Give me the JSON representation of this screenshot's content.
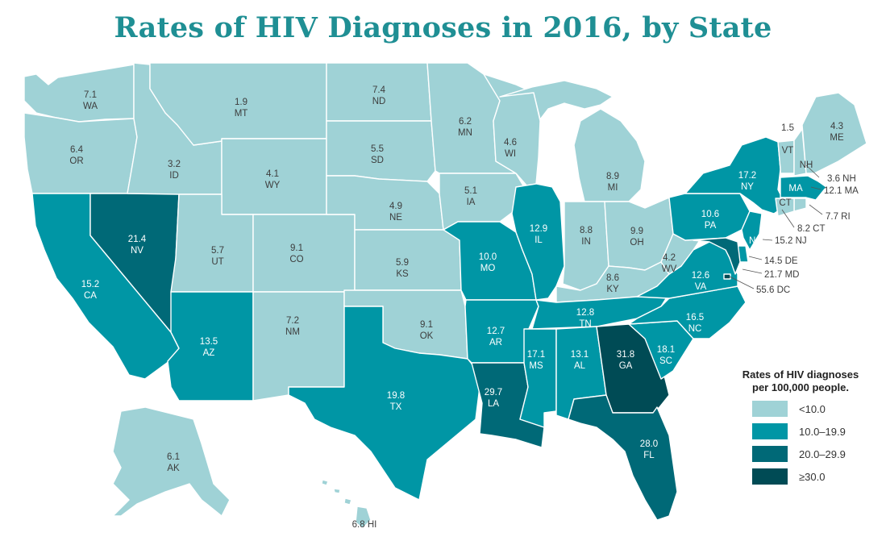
{
  "title": "Rates of HIV Diagnoses in 2016, by State",
  "colors": {
    "c1": "#9fd2d6",
    "c2": "#0096a5",
    "c3": "#006977",
    "c4": "#004b55",
    "title": "#1f8f94"
  },
  "legend": {
    "title_line1": "Rates of HIV diagnoses",
    "title_line2": "per 100,000 people.",
    "items": [
      {
        "label": "<10.0"
      },
      {
        "label": "10.0–19.9"
      },
      {
        "label": "20.0–29.9"
      },
      {
        "label": "≥30.0"
      }
    ]
  },
  "chart_data": {
    "type": "choropleth",
    "title": "Rates of HIV Diagnoses in 2016, by State",
    "unit": "per 100,000 people",
    "bins": [
      "<10.0",
      "10.0–19.9",
      "20.0–29.9",
      "≥30.0"
    ],
    "states": [
      {
        "code": "WA",
        "value": "7.1"
      },
      {
        "code": "OR",
        "value": "6.4"
      },
      {
        "code": "CA",
        "value": "15.2"
      },
      {
        "code": "NV",
        "value": "21.4"
      },
      {
        "code": "ID",
        "value": "3.2"
      },
      {
        "code": "MT",
        "value": "1.9"
      },
      {
        "code": "WY",
        "value": "4.1"
      },
      {
        "code": "UT",
        "value": "5.7"
      },
      {
        "code": "AZ",
        "value": "13.5"
      },
      {
        "code": "CO",
        "value": "9.1"
      },
      {
        "code": "NM",
        "value": "7.2"
      },
      {
        "code": "ND",
        "value": "7.4"
      },
      {
        "code": "SD",
        "value": "5.5"
      },
      {
        "code": "NE",
        "value": "4.9"
      },
      {
        "code": "KS",
        "value": "5.9"
      },
      {
        "code": "OK",
        "value": "9.1"
      },
      {
        "code": "TX",
        "value": "19.8"
      },
      {
        "code": "MN",
        "value": "6.2"
      },
      {
        "code": "IA",
        "value": "5.1"
      },
      {
        "code": "MO",
        "value": "10.0"
      },
      {
        "code": "AR",
        "value": "12.7"
      },
      {
        "code": "LA",
        "value": "29.7"
      },
      {
        "code": "WI",
        "value": "4.6"
      },
      {
        "code": "IL",
        "value": "12.9"
      },
      {
        "code": "MI",
        "value": "8.9"
      },
      {
        "code": "IN",
        "value": "8.8"
      },
      {
        "code": "OH",
        "value": "9.9"
      },
      {
        "code": "KY",
        "value": "8.6"
      },
      {
        "code": "TN",
        "value": "12.8"
      },
      {
        "code": "MS",
        "value": "17.1"
      },
      {
        "code": "AL",
        "value": "13.1"
      },
      {
        "code": "GA",
        "value": "31.8"
      },
      {
        "code": "FL",
        "value": "28.0"
      },
      {
        "code": "SC",
        "value": "18.1"
      },
      {
        "code": "NC",
        "value": "16.5"
      },
      {
        "code": "VA",
        "value": "12.6"
      },
      {
        "code": "WV",
        "value": "4.2"
      },
      {
        "code": "PA",
        "value": "10.6"
      },
      {
        "code": "NY",
        "value": "17.2"
      },
      {
        "code": "VT",
        "value": "1.5"
      },
      {
        "code": "NH",
        "value": "3.6"
      },
      {
        "code": "ME",
        "value": "4.3"
      },
      {
        "code": "MA",
        "value": "12.1"
      },
      {
        "code": "RI",
        "value": "7.7"
      },
      {
        "code": "CT",
        "value": "8.2"
      },
      {
        "code": "NJ",
        "value": "15.2"
      },
      {
        "code": "DE",
        "value": "14.5"
      },
      {
        "code": "MD",
        "value": "21.7"
      },
      {
        "code": "DC",
        "value": "55.6"
      },
      {
        "code": "AK",
        "value": "6.1"
      },
      {
        "code": "HI",
        "value": "6.8"
      }
    ]
  },
  "callouts": {
    "NH": "3.6 NH",
    "MA": "12.1 MA",
    "RI": "7.7 RI",
    "CT": "8.2 CT",
    "NJ": "15.2 NJ",
    "DE": "14.5 DE",
    "MD": "21.7 MD",
    "DC": "55.6 DC"
  }
}
